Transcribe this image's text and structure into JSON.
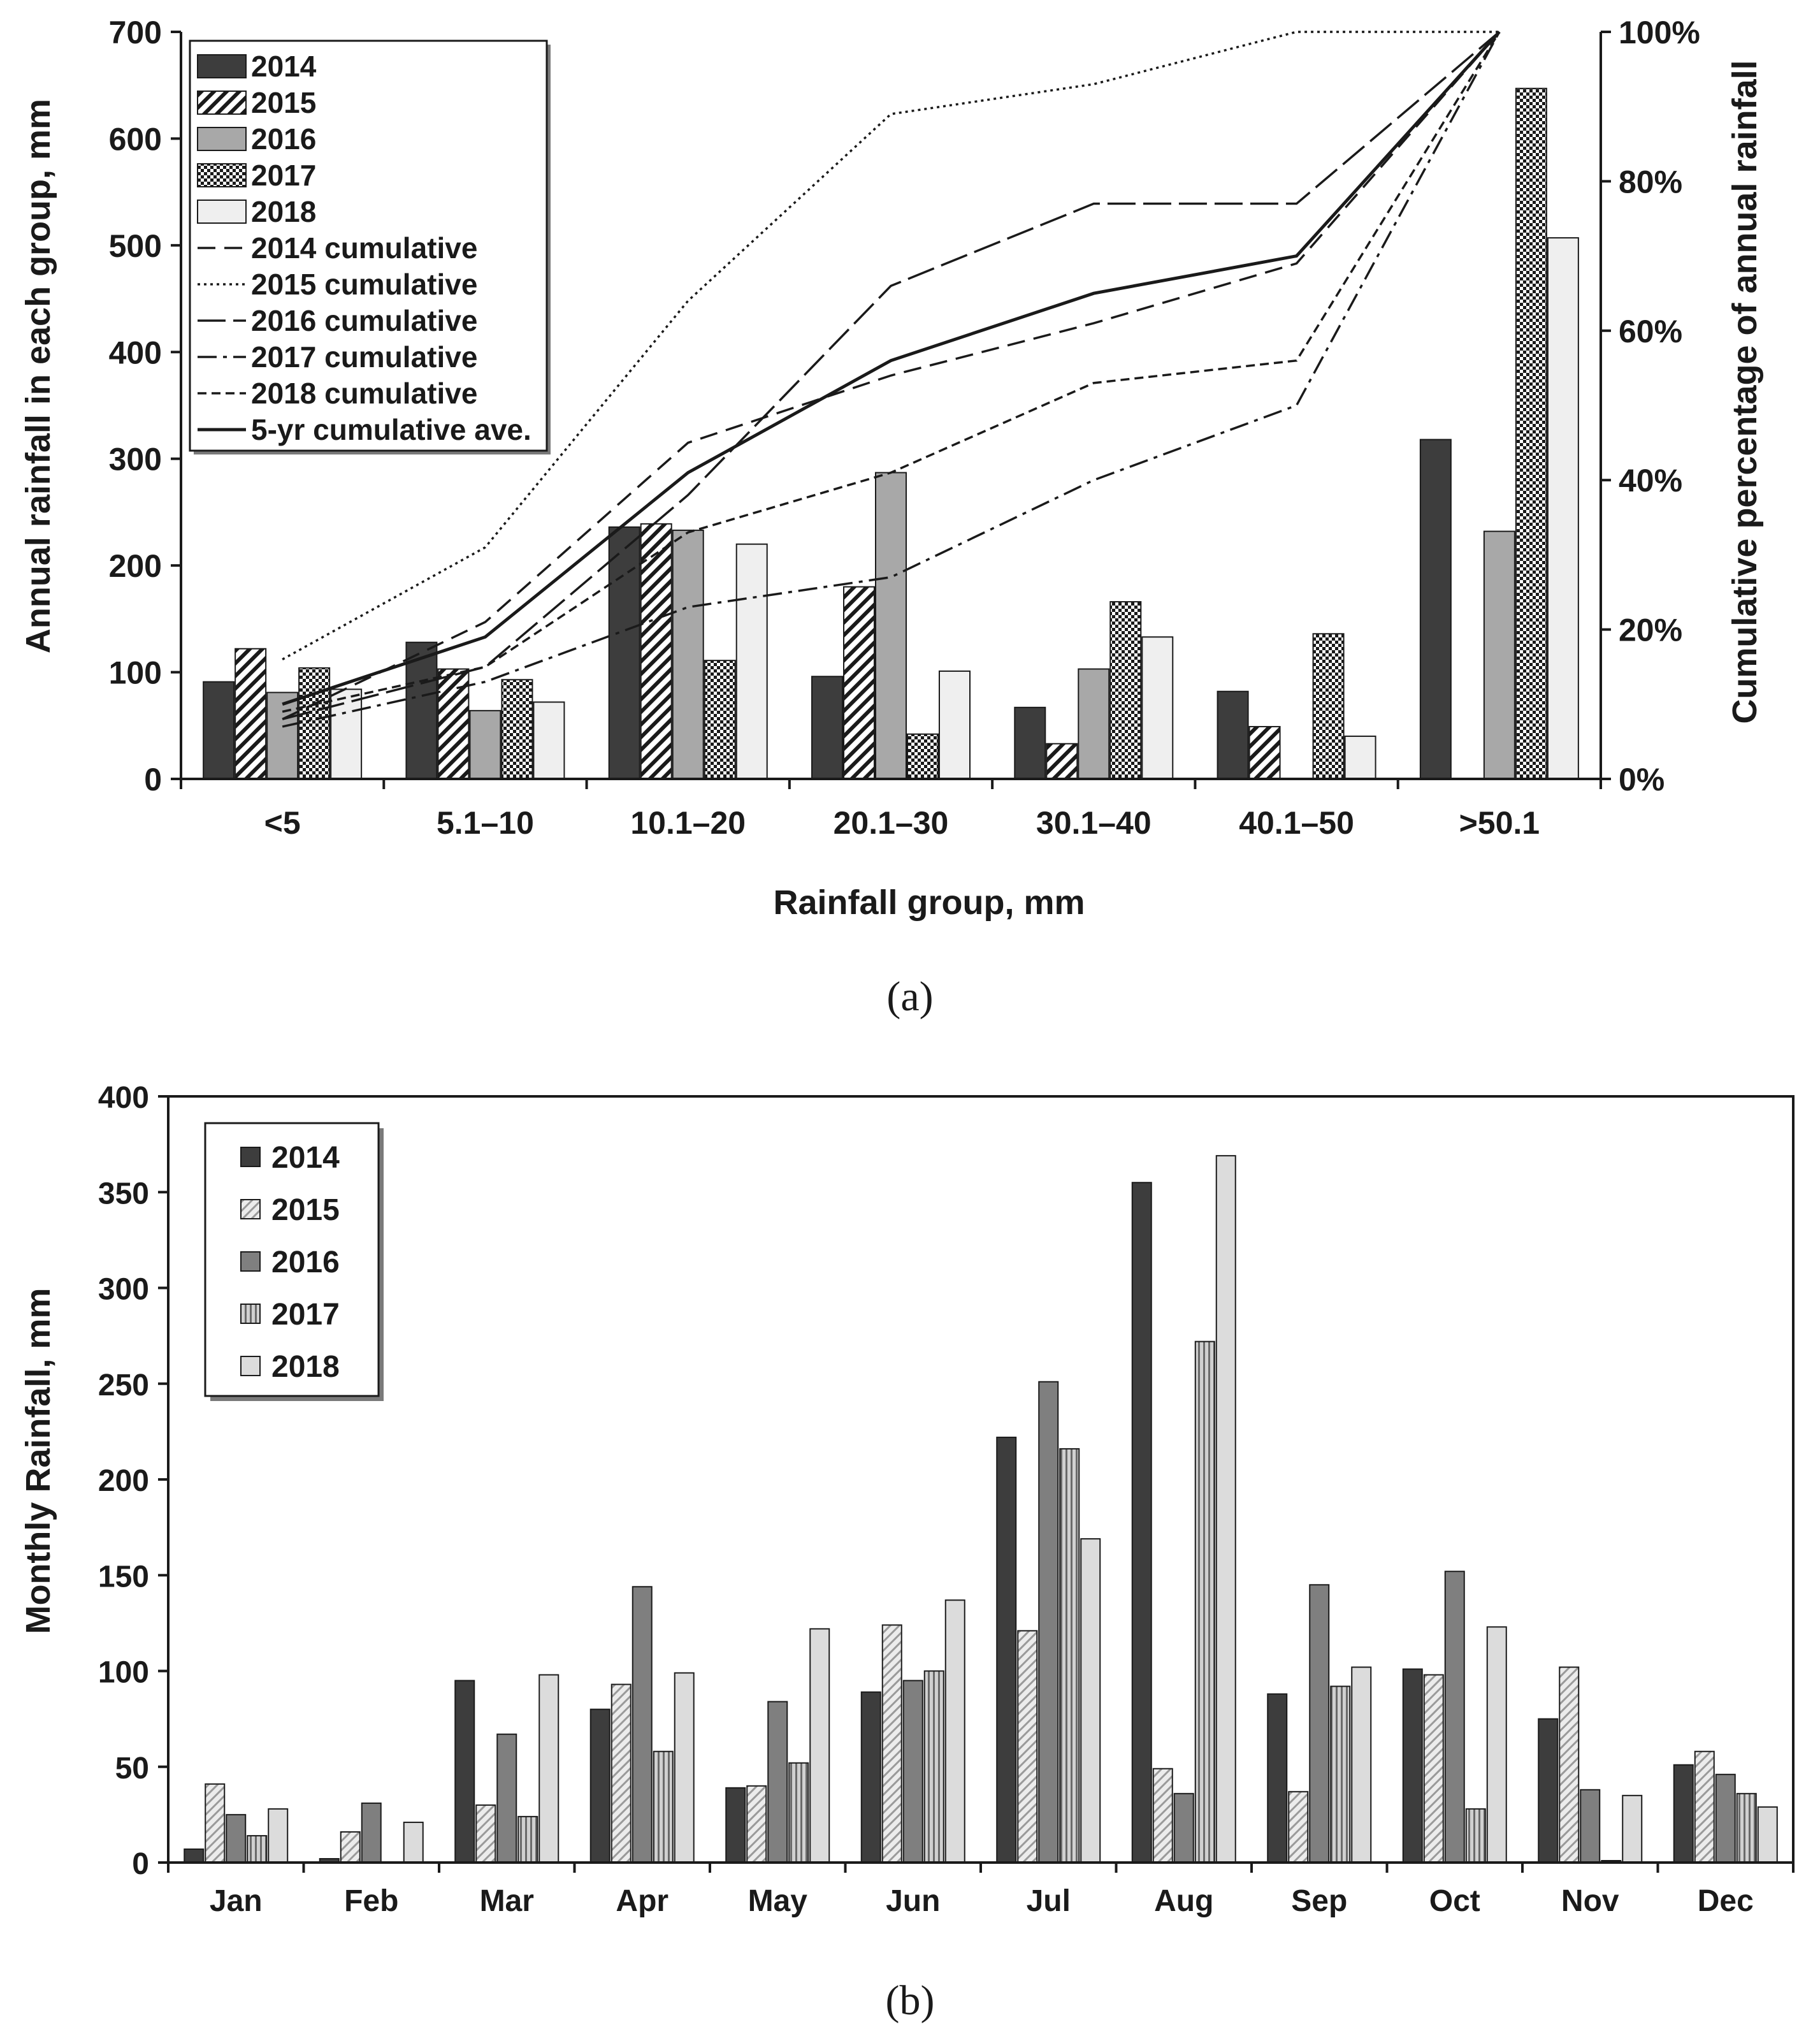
{
  "chart_data": [
    {
      "type": "bar",
      "panel_label": "(a)",
      "title": "",
      "xlabel": "Rainfall group, mm",
      "ylabel": "Annual rainfall in each group, mm",
      "y2label": "Cumulative percentage of annual rainfall",
      "ylim": [
        0,
        700
      ],
      "yticks": [
        "0",
        "100",
        "200",
        "300",
        "400",
        "500",
        "600",
        "700"
      ],
      "y2lim": [
        0,
        100
      ],
      "y2ticks": [
        "0%",
        "20%",
        "40%",
        "60%",
        "80%",
        "100%"
      ],
      "legend_position": "top-left",
      "categories": [
        "<5",
        "5.1–10",
        "10.1–20",
        "20.1–30",
        "30.1–40",
        "40.1–50",
        ">50.1"
      ],
      "series": [
        {
          "name": "2014",
          "values": [
            91,
            128,
            236,
            96,
            67,
            82,
            318
          ],
          "color": "#3d3d3d",
          "pattern": "solid"
        },
        {
          "name": "2015",
          "values": [
            122,
            103,
            239,
            180,
            33,
            49,
            0
          ],
          "color": "#ffffff",
          "pattern": "diagonal"
        },
        {
          "name": "2016",
          "values": [
            81,
            64,
            233,
            287,
            103,
            0,
            232
          ],
          "color": "#a8a8a8",
          "pattern": "solid"
        },
        {
          "name": "2017",
          "values": [
            104,
            93,
            111,
            42,
            166,
            136,
            647
          ],
          "color": "#8c8c8c",
          "pattern": "checker"
        },
        {
          "name": "2018",
          "values": [
            84,
            72,
            220,
            101,
            133,
            40,
            507
          ],
          "color": "#efefef",
          "pattern": "solid"
        }
      ],
      "cumulative_series": [
        {
          "name": "2014 cumulative",
          "values": [
            8,
            21,
            45,
            54,
            61,
            69,
            100
          ],
          "dash": "28,14"
        },
        {
          "name": "2015 cumulative",
          "values": [
            16,
            31,
            64,
            89,
            93,
            100,
            100
          ],
          "dash": "4,6"
        },
        {
          "name": "2016 cumulative",
          "values": [
            8,
            15,
            38,
            66,
            77,
            77,
            100
          ],
          "dash": "44,12"
        },
        {
          "name": "2017 cumulative",
          "values": [
            7,
            13,
            23,
            27,
            40,
            50,
            100
          ],
          "dash": "30,10,6,10"
        },
        {
          "name": "2018 cumulative",
          "values": [
            9,
            15,
            33,
            41,
            53,
            56,
            100
          ],
          "dash": "14,8"
        },
        {
          "name": "5-yr cumulative ave.",
          "values": [
            10,
            19,
            41,
            56,
            65,
            70,
            100
          ],
          "dash": ""
        }
      ]
    },
    {
      "type": "bar",
      "panel_label": "(b)",
      "title": "",
      "xlabel": "",
      "ylabel": "Monthly Rainfall, mm",
      "ylim": [
        0,
        400
      ],
      "yticks": [
        "0",
        "50",
        "100",
        "150",
        "200",
        "250",
        "300",
        "350",
        "400"
      ],
      "legend_position": "top-left",
      "categories": [
        "Jan",
        "Feb",
        "Mar",
        "Apr",
        "May",
        "Jun",
        "Jul",
        "Aug",
        "Sep",
        "Oct",
        "Nov",
        "Dec"
      ],
      "series": [
        {
          "name": "2014",
          "values": [
            7,
            2,
            95,
            80,
            39,
            89,
            222,
            355,
            88,
            101,
            75,
            51
          ],
          "color": "#3d3d3d",
          "pattern": "solid"
        },
        {
          "name": "2015",
          "values": [
            41,
            16,
            30,
            93,
            40,
            124,
            121,
            49,
            37,
            98,
            102,
            58
          ],
          "color": "#e2e2e2",
          "pattern": "hatch-light"
        },
        {
          "name": "2016",
          "values": [
            25,
            31,
            67,
            144,
            84,
            95,
            251,
            36,
            145,
            152,
            38,
            46
          ],
          "color": "#7f7f7f",
          "pattern": "solid"
        },
        {
          "name": "2017",
          "values": [
            14,
            0,
            24,
            58,
            52,
            100,
            216,
            272,
            92,
            28,
            1,
            36
          ],
          "color": "#bdbdbd",
          "pattern": "hatch-vertical"
        },
        {
          "name": "2018",
          "values": [
            28,
            21,
            98,
            99,
            122,
            137,
            169,
            369,
            102,
            123,
            35,
            29
          ],
          "color": "#dcdcdc",
          "pattern": "solid"
        }
      ]
    }
  ]
}
